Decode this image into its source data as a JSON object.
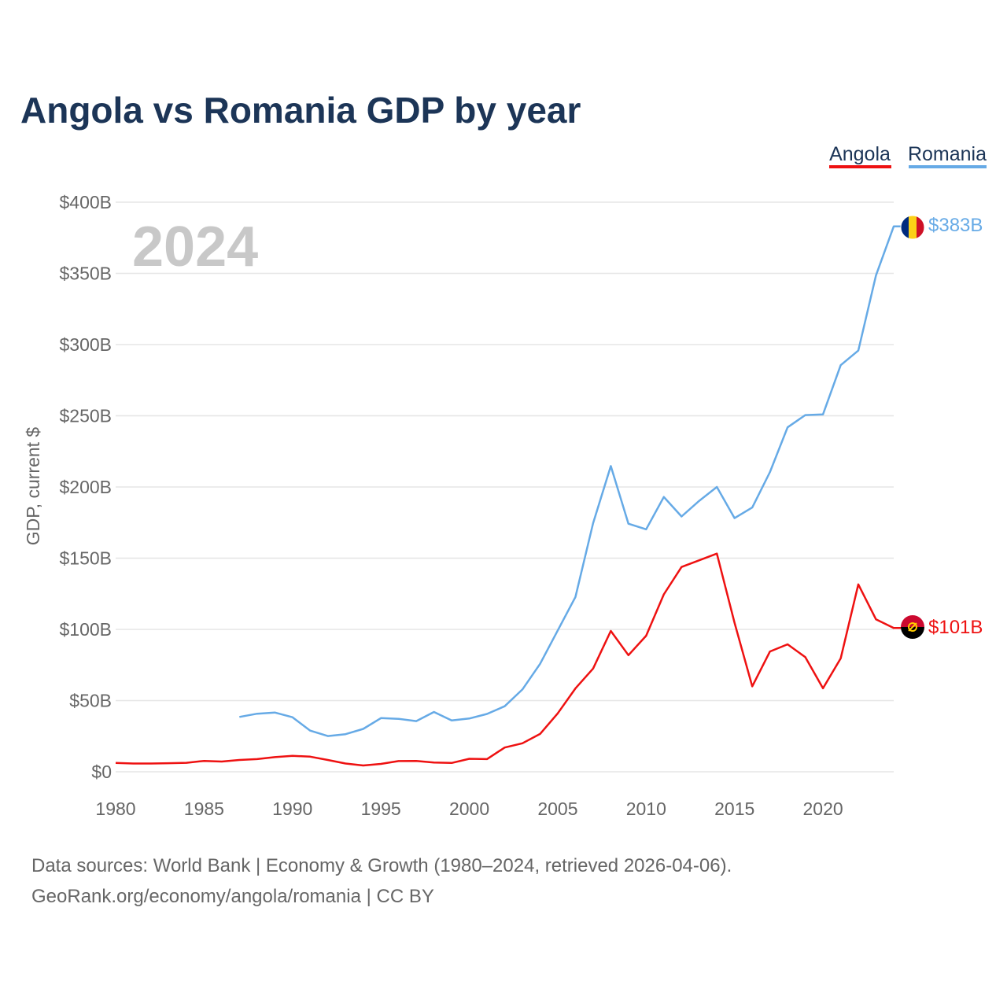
{
  "colors": {
    "angola": "#ee1111",
    "romania": "#66aae6",
    "title": "#1c3557",
    "text": "#666666",
    "grid": "#e6e6e6",
    "year_stamp": "#c8c8c8"
  },
  "chart_data": {
    "type": "line",
    "title": "Angola vs Romania GDP by year",
    "ylabel": "GDP, current $",
    "xlim": [
      1980,
      2024
    ],
    "ylim": [
      0,
      400
    ],
    "year_stamp": "2024",
    "x_ticks": [
      1980,
      1985,
      1990,
      1995,
      2000,
      2005,
      2010,
      2015,
      2020
    ],
    "y_ticks": [
      {
        "value": 0,
        "label": "$0"
      },
      {
        "value": 50,
        "label": "$50B"
      },
      {
        "value": 100,
        "label": "$100B"
      },
      {
        "value": 150,
        "label": "$150B"
      },
      {
        "value": 200,
        "label": "$200B"
      },
      {
        "value": 250,
        "label": "$250B"
      },
      {
        "value": 300,
        "label": "$300B"
      },
      {
        "value": 350,
        "label": "$350B"
      },
      {
        "value": 400,
        "label": "$400B"
      }
    ],
    "legend": [
      {
        "name": "Angola",
        "color": "#ee1111"
      },
      {
        "name": "Romania",
        "color": "#66aae6"
      }
    ],
    "series": [
      {
        "name": "Angola",
        "color": "#ee1111",
        "end_label": "$101B",
        "flag": "angola-flag",
        "x": [
          1980,
          1981,
          1982,
          1983,
          1984,
          1985,
          1986,
          1987,
          1988,
          1989,
          1990,
          1991,
          1992,
          1993,
          1994,
          1995,
          1996,
          1997,
          1998,
          1999,
          2000,
          2001,
          2002,
          2003,
          2004,
          2005,
          2006,
          2007,
          2008,
          2009,
          2010,
          2011,
          2012,
          2013,
          2014,
          2015,
          2016,
          2017,
          2018,
          2019,
          2020,
          2021,
          2022,
          2023,
          2024
        ],
        "values": [
          6.2,
          5.8,
          5.8,
          6.0,
          6.3,
          7.6,
          7.2,
          8.3,
          8.9,
          10.3,
          11.2,
          10.6,
          8.3,
          5.8,
          4.4,
          5.5,
          7.5,
          7.6,
          6.5,
          6.2,
          9.1,
          8.9,
          17.0,
          20.0,
          26.6,
          41.0,
          58.5,
          72.5,
          98.9,
          81.9,
          95.5,
          124.6,
          143.8,
          148.5,
          153.2,
          104.6,
          60.0,
          84.5,
          89.5,
          80.5,
          58.6,
          79.6,
          131.6,
          107.0,
          101.0
        ]
      },
      {
        "name": "Romania",
        "color": "#66aae6",
        "end_label": "$383B",
        "flag": "romania-flag",
        "x": [
          1987,
          1988,
          1989,
          1990,
          1991,
          1992,
          1993,
          1994,
          1995,
          1996,
          1997,
          1998,
          1999,
          2000,
          2001,
          2002,
          2003,
          2004,
          2005,
          2006,
          2007,
          2008,
          2009,
          2010,
          2011,
          2012,
          2013,
          2014,
          2015,
          2016,
          2017,
          2018,
          2019,
          2020,
          2021,
          2022,
          2023,
          2024
        ],
        "values": [
          38.5,
          40.8,
          41.6,
          38.3,
          28.9,
          25.1,
          26.4,
          30.1,
          37.7,
          37.2,
          35.6,
          42.0,
          36.0,
          37.4,
          40.6,
          46.0,
          57.8,
          75.8,
          99.2,
          122.7,
          174.6,
          214.7,
          174.2,
          170.3,
          193.0,
          179.3,
          190.3,
          200.0,
          178.1,
          185.6,
          210.5,
          241.9,
          250.5,
          251.0,
          285.5,
          295.8,
          348.7,
          383.0
        ]
      }
    ]
  },
  "sources": {
    "line1": "Data sources: World Bank | Economy & Growth (1980–2024, retrieved 2026-04-06).",
    "line2": "GeoRank.org/economy/angola/romania | CC BY"
  }
}
